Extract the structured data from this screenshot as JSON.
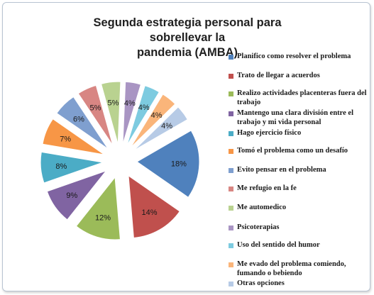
{
  "chart_data": {
    "type": "pie",
    "title": "Segunda estrategia personal para sobrellevar la pandemia (AMBA)",
    "title_lines": [
      "Segunda estrategia personal para sobrellevar la",
      "pandemia (AMBA)"
    ],
    "exploded": true,
    "legend_position": "right",
    "categories": [
      "Planifico como resolver el problema",
      "Trato de llegar a acuerdos",
      "Realizo actividades placenteras fuera del trabajo",
      "Mantengo una clara división entre el trabajo y mi vida personal",
      "Hago ejercicio físico",
      "Tomó el problema como un desafío",
      "Evito pensar en el problema",
      "Me refugio en la fe",
      "Me automedico",
      "Psicoterapias",
      "Uso del sentido del humor",
      "Me evado del problema comiendo, fumando o bebiendo",
      "Otras opciones"
    ],
    "values": [
      18,
      14,
      12,
      9,
      8,
      7,
      6,
      5,
      5,
      4,
      4,
      4,
      4
    ],
    "value_labels": [
      "18%",
      "14%",
      "12%",
      "9%",
      "8%",
      "7%",
      "6%",
      "5%",
      "5%",
      "4%",
      "4%",
      "4%",
      "4%"
    ],
    "colors": [
      "#4f81bd",
      "#c0504d",
      "#9bbb59",
      "#8064a2",
      "#4bacc6",
      "#f79646",
      "#7f9fcf",
      "#d88683",
      "#b9d290",
      "#a995c3",
      "#7dcbe0",
      "#fab57a",
      "#b7cbe6"
    ]
  }
}
